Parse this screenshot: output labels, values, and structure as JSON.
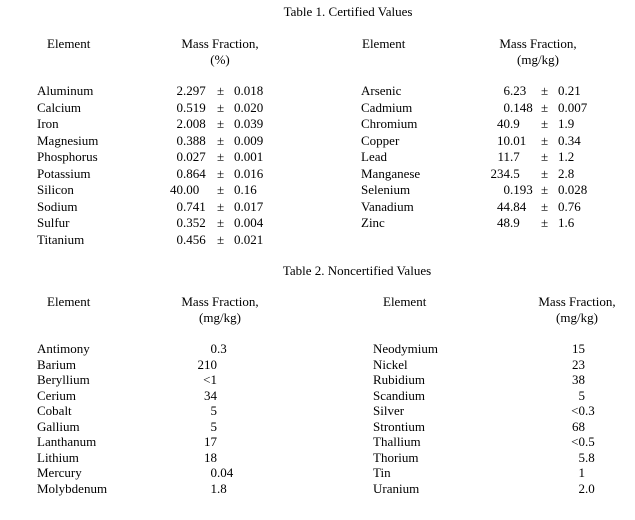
{
  "table1": {
    "title": "Table 1. Certified Values",
    "left": {
      "col_element": "Element",
      "col_mass": "Mass Fraction,",
      "col_unit": "(%)",
      "rows": [
        {
          "element": "Aluminum",
          "value": "2.297",
          "pm": "±",
          "unc": "0.018"
        },
        {
          "element": "Calcium",
          "value": "0.519",
          "pm": "±",
          "unc": "0.020"
        },
        {
          "element": "Iron",
          "value": "2.008",
          "pm": "±",
          "unc": "0.039"
        },
        {
          "element": "Magnesium",
          "value": "0.388",
          "pm": "±",
          "unc": "0.009"
        },
        {
          "element": "Phosphorus",
          "value": "0.027",
          "pm": "±",
          "unc": "0.001"
        },
        {
          "element": "Potassium",
          "value": "0.864",
          "pm": "±",
          "unc": "0.016"
        },
        {
          "element": "Silicon",
          "value": "40.00",
          "pm": "±",
          "unc": "0.16"
        },
        {
          "element": "Sodium",
          "value": "0.741",
          "pm": "±",
          "unc": "0.017"
        },
        {
          "element": "Sulfur",
          "value": "0.352",
          "pm": "±",
          "unc": "0.004"
        },
        {
          "element": "Titanium",
          "value": "0.456",
          "pm": "±",
          "unc": "0.021"
        }
      ]
    },
    "right": {
      "col_element": "Element",
      "col_mass": "Mass Fraction,",
      "col_unit": "(mg/kg)",
      "rows": [
        {
          "element": "Arsenic",
          "value": "6.23",
          "pm": "±",
          "unc": "0.21"
        },
        {
          "element": "Cadmium",
          "value": "0.148",
          "pm": "±",
          "unc": "0.007"
        },
        {
          "element": "Chromium",
          "value": "40.9",
          "pm": "±",
          "unc": "1.9"
        },
        {
          "element": "Copper",
          "value": "10.01",
          "pm": "±",
          "unc": "0.34"
        },
        {
          "element": "Lead",
          "value": "11.7",
          "pm": "±",
          "unc": "1.2"
        },
        {
          "element": "Manganese",
          "value": "234.5",
          "pm": "±",
          "unc": "2.8"
        },
        {
          "element": "Selenium",
          "value": "0.193",
          "pm": "±",
          "unc": "0.028"
        },
        {
          "element": "Vanadium",
          "value": "44.84",
          "pm": "±",
          "unc": "0.76"
        },
        {
          "element": "Zinc",
          "value": "48.9",
          "pm": "±",
          "unc": "1.6"
        }
      ]
    }
  },
  "table2": {
    "title": "Table 2. Noncertified Values",
    "left": {
      "col_element": "Element",
      "col_mass": "Mass Fraction,",
      "col_unit": "(mg/kg)",
      "rows": [
        {
          "element": "Antimony",
          "value": "0.3"
        },
        {
          "element": "Barium",
          "value": "210"
        },
        {
          "element": "Beryllium",
          "value": "<1"
        },
        {
          "element": "Cerium",
          "value": "34"
        },
        {
          "element": "Cobalt",
          "value": "5"
        },
        {
          "element": "Gallium",
          "value": "5"
        },
        {
          "element": "Lanthanum",
          "value": "17"
        },
        {
          "element": "Lithium",
          "value": "18"
        },
        {
          "element": "Mercury",
          "value": "0.04"
        },
        {
          "element": "Molybdenum",
          "value": "1.8"
        }
      ]
    },
    "right": {
      "col_element": "Element",
      "col_mass": "Mass Fraction,",
      "col_unit": "(mg/kg)",
      "rows": [
        {
          "element": "Neodymium",
          "value": "15"
        },
        {
          "element": "Nickel",
          "value": "23"
        },
        {
          "element": "Rubidium",
          "value": "38"
        },
        {
          "element": "Scandium",
          "value": "5"
        },
        {
          "element": "Silver",
          "value": "<0.3"
        },
        {
          "element": "Strontium",
          "value": "68"
        },
        {
          "element": "Thallium",
          "value": "<0.5"
        },
        {
          "element": "Thorium",
          "value": "5.8"
        },
        {
          "element": "Tin",
          "value": "1"
        },
        {
          "element": "Uranium",
          "value": "2.0"
        }
      ]
    }
  }
}
